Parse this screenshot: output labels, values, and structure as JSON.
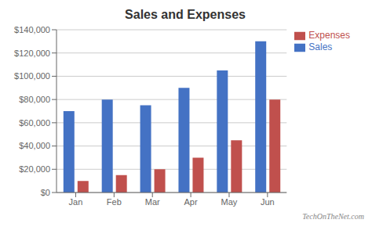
{
  "chart_data": {
    "type": "bar",
    "title": "Sales and Expenses",
    "categories": [
      "Jan",
      "Feb",
      "Mar",
      "Apr",
      "May",
      "Jun"
    ],
    "series": [
      {
        "name": "Sales",
        "color": "#4472C4",
        "values": [
          70000,
          80000,
          75000,
          90000,
          105000,
          130000
        ]
      },
      {
        "name": "Expenses",
        "color": "#C0504D",
        "values": [
          10000,
          15000,
          20000,
          30000,
          45000,
          80000
        ]
      }
    ],
    "ylim": [
      0,
      140000
    ],
    "yticks": [
      {
        "value": 0,
        "label": "$0"
      },
      {
        "value": 20000,
        "label": "$20,000"
      },
      {
        "value": 40000,
        "label": "$40,000"
      },
      {
        "value": 60000,
        "label": "$60,000"
      },
      {
        "value": 80000,
        "label": "$80,000"
      },
      {
        "value": 100000,
        "label": "$100,000"
      },
      {
        "value": 120000,
        "label": "$120,000"
      },
      {
        "value": 140000,
        "label": "$140,000"
      }
    ],
    "grid": true,
    "legend": "upper right",
    "annotations": [
      "TechOnTheNet.com"
    ]
  }
}
